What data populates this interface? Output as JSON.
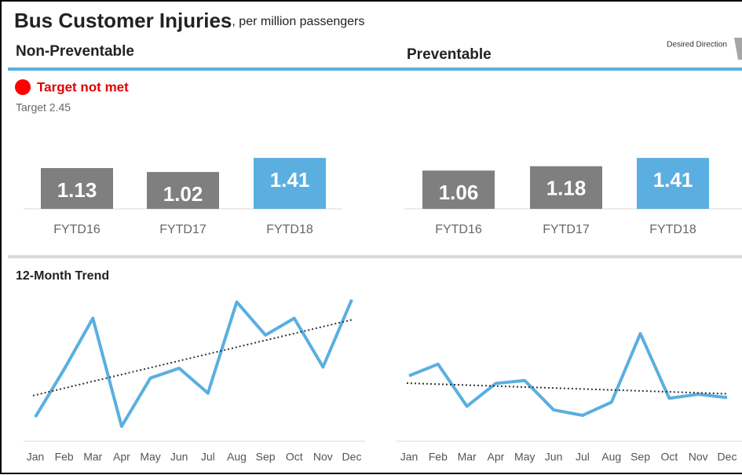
{
  "header": {
    "title": "Bus Customer Injuries",
    "subtitle": ", per million passengers",
    "note": "Desired Direction"
  },
  "status": {
    "label": "Target not met",
    "target": "Target 2.45"
  },
  "trend_title": "12-Month Trend",
  "chart_data": [
    {
      "type": "bar",
      "title": "Non-Preventable",
      "categories": [
        "FYTD16",
        "FYTD17",
        "FYTD18"
      ],
      "values": [
        1.13,
        1.02,
        1.41
      ],
      "colors": [
        "#7f7f7f",
        "#7f7f7f",
        "#5aafe0"
      ]
    },
    {
      "type": "bar",
      "title": "Preventable",
      "categories": [
        "FYTD16",
        "FYTD17",
        "FYTD18"
      ],
      "values": [
        1.06,
        1.18,
        1.41
      ],
      "colors": [
        "#7f7f7f",
        "#7f7f7f",
        "#5aafe0"
      ]
    },
    {
      "type": "line",
      "categories": [
        "Jan",
        "Feb",
        "Mar",
        "Apr",
        "May",
        "Jun",
        "Jul",
        "Aug",
        "Sep",
        "Oct",
        "Nov",
        "Dec"
      ],
      "values": [
        0.39,
        1.21,
        2.09,
        0.23,
        1.06,
        1.23,
        0.8,
        2.37,
        1.8,
        2.09,
        1.25,
        2.41
      ],
      "color": "#5aafe0",
      "ylim": [
        0,
        2.5
      ],
      "trendline": true
    },
    {
      "type": "line",
      "categories": [
        "Jan",
        "Feb",
        "Mar",
        "Apr",
        "May",
        "Jun",
        "Jul",
        "Aug",
        "Sep",
        "Oct",
        "Nov",
        "Dec"
      ],
      "values": [
        1.76,
        2.08,
        0.92,
        1.55,
        1.63,
        0.82,
        0.67,
        1.03,
        2.92,
        1.14,
        1.25,
        1.16
      ],
      "color": "#5aafe0",
      "ylim": [
        0,
        4
      ],
      "trendline": true
    }
  ]
}
